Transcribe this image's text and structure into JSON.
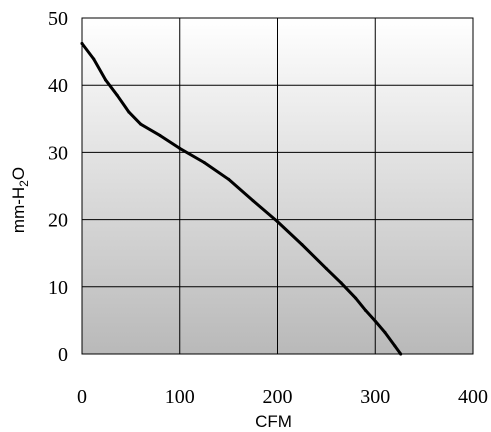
{
  "chart_data": {
    "type": "line",
    "title": "",
    "xlabel": "CFM",
    "ylabel": {
      "prefix": "mm-H",
      "subscript": "2",
      "suffix": "O"
    },
    "xlim": [
      0,
      400
    ],
    "ylim": [
      0,
      50
    ],
    "x_ticks": [
      "0",
      "100",
      "200",
      "300",
      "400"
    ],
    "y_ticks": [
      "0",
      "10",
      "20",
      "30",
      "40",
      "50"
    ],
    "grid": true,
    "background": "vertical gradient light gray to darker gray",
    "line_color": "#000000",
    "series": [
      {
        "name": "",
        "x": [
          0,
          12,
          24,
          36,
          48,
          60,
          80,
          100,
          125,
          150,
          175,
          200,
          225,
          250,
          265,
          280,
          290,
          300,
          310,
          320,
          326
        ],
        "y": [
          46.2,
          43.9,
          40.8,
          38.5,
          36.0,
          34.2,
          32.5,
          30.6,
          28.5,
          26.0,
          22.8,
          19.7,
          16.3,
          12.7,
          10.6,
          8.3,
          6.5,
          4.9,
          3.2,
          1.2,
          0
        ]
      }
    ]
  }
}
